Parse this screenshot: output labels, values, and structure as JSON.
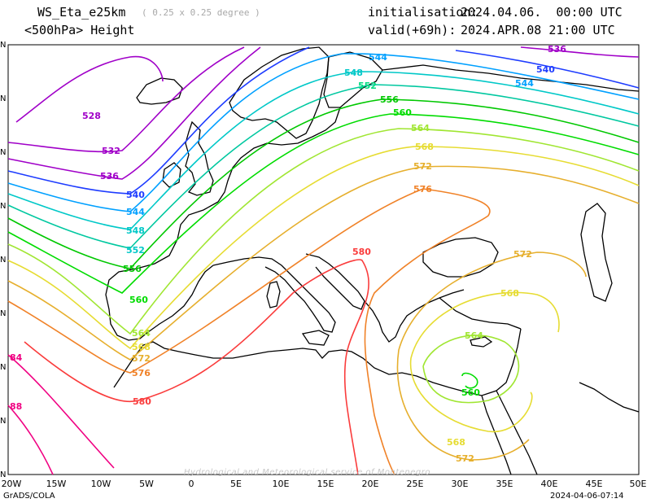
{
  "header": {
    "model": "WS_Eta_e25km",
    "resolution": "( 0.25 x 0.25 degree )",
    "level": "<500hPa> Height",
    "init_label": "initialisation:",
    "init_value": "2024.04.06.  00:00 UTC",
    "valid_label": "valid(+69h):",
    "valid_value": "2024.APR.08 21:00 UTC"
  },
  "lon_labels": [
    "20W",
    "15W",
    "10W",
    "5W",
    "0",
    "5E",
    "10E",
    "15E",
    "20E",
    "25E",
    "30E",
    "35E",
    "40E",
    "45E",
    "50E"
  ],
  "lat_labels": [
    "N",
    "N",
    "N",
    "N",
    "N",
    "N",
    "N",
    "N",
    "N",
    "N"
  ],
  "footer": {
    "left": "GrADS/COLA",
    "right": "2024-04-06-07:14",
    "watermark": "Hydrological and Meteorological service of Montenegro"
  },
  "contour_labels": [
    {
      "value": "528",
      "color": "#a000c8"
    },
    {
      "value": "532",
      "color": "#a000c8"
    },
    {
      "value": "536",
      "color": "#a000c8"
    },
    {
      "value": "536",
      "color": "#a000c8"
    },
    {
      "value": "540",
      "color": "#1e3cff"
    },
    {
      "value": "540",
      "color": "#1e3cff"
    },
    {
      "value": "544",
      "color": "#00a0ff"
    },
    {
      "value": "544",
      "color": "#00a0ff"
    },
    {
      "value": "544",
      "color": "#00a0ff"
    },
    {
      "value": "548",
      "color": "#00c8c8"
    },
    {
      "value": "548",
      "color": "#00c8c8"
    },
    {
      "value": "552",
      "color": "#00dc80"
    },
    {
      "value": "552",
      "color": "#00c8c8"
    },
    {
      "value": "556",
      "color": "#00c800"
    },
    {
      "value": "556",
      "color": "#00c800"
    },
    {
      "value": "560",
      "color": "#00dc00"
    },
    {
      "value": "560",
      "color": "#00dc00"
    },
    {
      "value": "560",
      "color": "#00dc00"
    },
    {
      "value": "564",
      "color": "#a0e632"
    },
    {
      "value": "564",
      "color": "#a0e632"
    },
    {
      "value": "564",
      "color": "#a0e632"
    },
    {
      "value": "568",
      "color": "#e6dc32"
    },
    {
      "value": "568",
      "color": "#e6dc32"
    },
    {
      "value": "568",
      "color": "#e6dc32"
    },
    {
      "value": "568",
      "color": "#e6dc32"
    },
    {
      "value": "572",
      "color": "#e6af2d"
    },
    {
      "value": "572",
      "color": "#e6af2d"
    },
    {
      "value": "572",
      "color": "#e6af2d"
    },
    {
      "value": "572",
      "color": "#e6af2d"
    },
    {
      "value": "576",
      "color": "#f08228"
    },
    {
      "value": "576",
      "color": "#f08228"
    },
    {
      "value": "580",
      "color": "#fa3c3c"
    },
    {
      "value": "580",
      "color": "#fa3c3c"
    },
    {
      "value": "84",
      "color": "#f00082"
    },
    {
      "value": "88",
      "color": "#f00082"
    }
  ]
}
